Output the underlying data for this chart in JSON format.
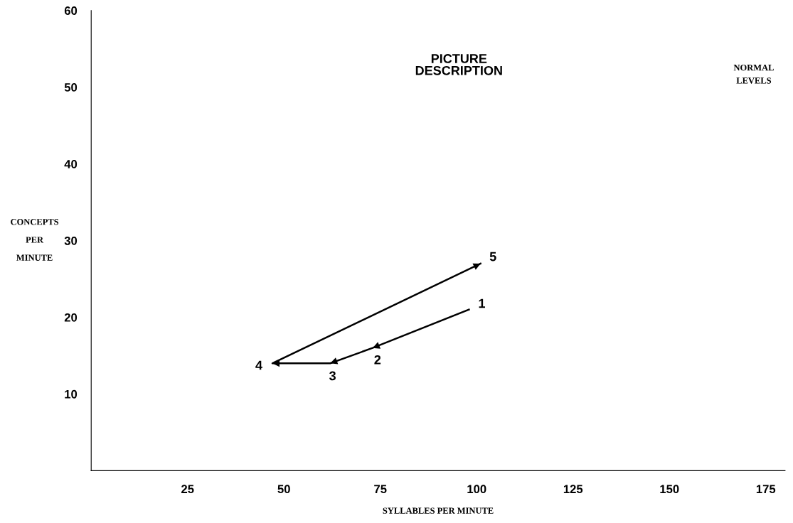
{
  "chart_data": {
    "type": "line",
    "title": "PICTURE\nDESCRIPTION",
    "xlabel": "SYLLABLES PER MINUTE",
    "ylabel": "CONCEPTS\nPER\nMINUTE",
    "x": [
      98,
      73,
      62,
      47,
      101
    ],
    "series": [
      {
        "color": "#000000",
        "values": [
          21,
          16,
          14,
          14,
          27
        ]
      }
    ],
    "marker": "none",
    "line_style": "solid",
    "grid": false,
    "legend": false,
    "xlim": [
      0,
      180
    ],
    "xticks": [
      25,
      50,
      75,
      100,
      125,
      150,
      175
    ],
    "ylim": [
      0,
      60
    ],
    "yticks": [
      10,
      20,
      30,
      40,
      50,
      60
    ],
    "annotations": [
      "1",
      "2",
      "3",
      "4",
      "5",
      "NORMAL\nLEVELS"
    ]
  }
}
